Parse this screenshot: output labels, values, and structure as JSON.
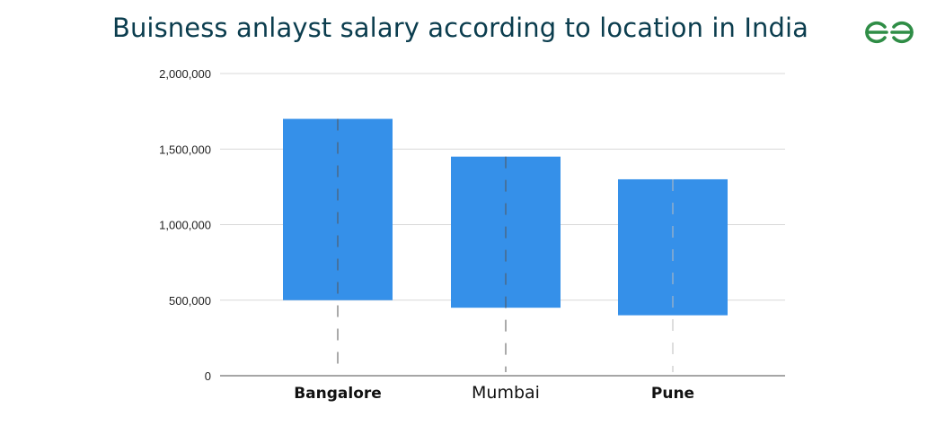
{
  "chart_data": {
    "type": "bar",
    "subtype": "floating-range",
    "title": "Buisness anlayst salary according to location in India",
    "categories": [
      "Bangalore",
      "Mumbai",
      "Pune"
    ],
    "series": [
      {
        "low": [
          500000,
          450000,
          400000
        ],
        "high": [
          1700000,
          1450000,
          1300000
        ]
      }
    ],
    "yticks": [
      "0",
      "500,000",
      "1,000,000",
      "1,500,000",
      "2,000,000"
    ],
    "ylim": [
      0,
      2000000
    ],
    "grid": true,
    "bar_color": "#3590e9",
    "grid_color": "#d9d9d9"
  },
  "logo": {
    "icon": "gfg-logo-icon",
    "color": "#2f8d46"
  }
}
